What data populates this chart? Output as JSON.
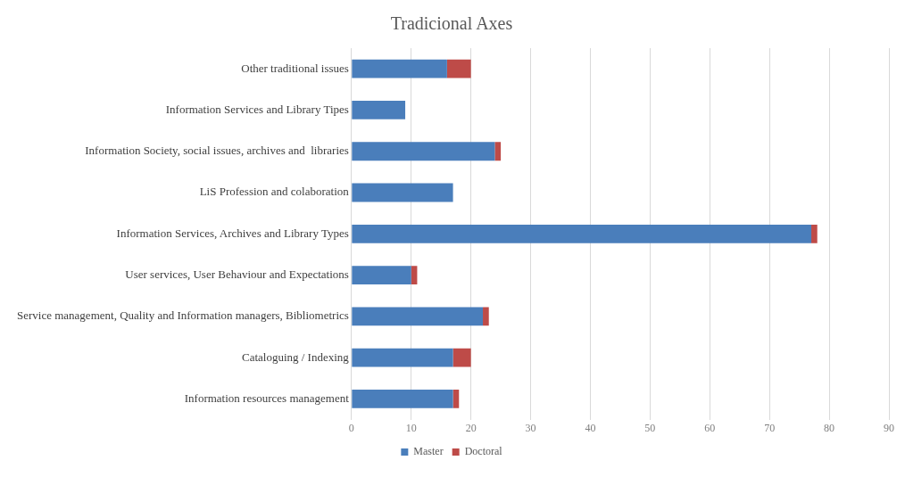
{
  "chart_data": {
    "type": "bar",
    "orientation": "horizontal",
    "stacked": true,
    "title": "Tradicional Axes",
    "categories": [
      "Other traditional issues",
      "Information Services and Library Tipes",
      "Information Society, social issues, archives and  libraries",
      "LiS Profession and colaboration",
      "Information Services, Archives and Library Types",
      "User services, User Behaviour and Expectations",
      "Service management, Quality and Information managers, Bibliometrics",
      "Cataloguing / Indexing",
      "Information resources management"
    ],
    "series": [
      {
        "name": "Master",
        "color": "#4a7ebb",
        "values": [
          16,
          9,
          24,
          17,
          77,
          10,
          22,
          17,
          17
        ]
      },
      {
        "name": "Doctoral",
        "color": "#be4b48",
        "values": [
          4,
          0,
          1,
          0,
          1,
          1,
          1,
          3,
          1
        ]
      }
    ],
    "xlim": [
      0,
      90
    ],
    "xticks": [
      0,
      10,
      20,
      30,
      40,
      50,
      60,
      70,
      80,
      90
    ],
    "grid": "x",
    "legend": "bottom"
  }
}
